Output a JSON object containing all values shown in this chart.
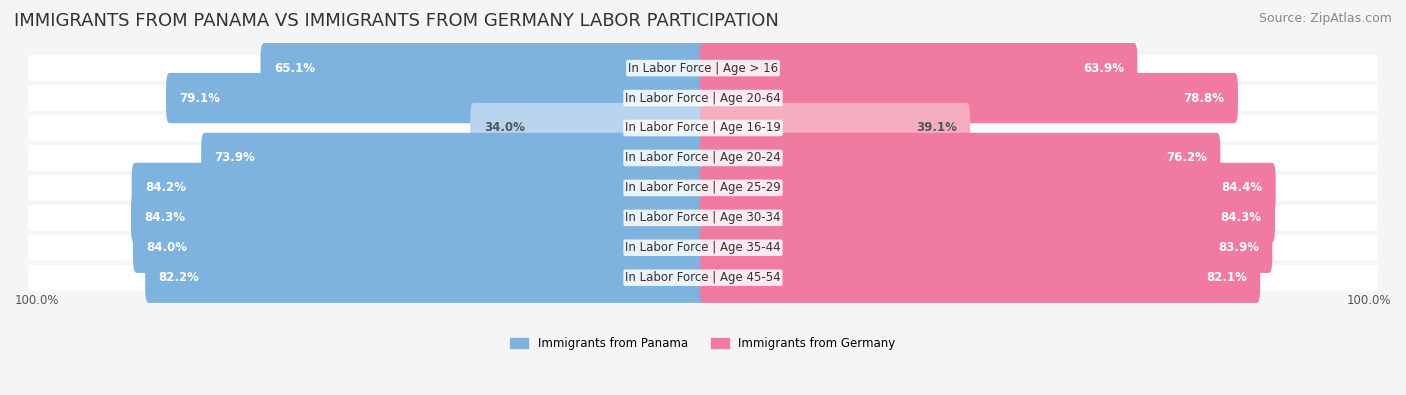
{
  "title": "IMMIGRANTS FROM PANAMA VS IMMIGRANTS FROM GERMANY LABOR PARTICIPATION",
  "source": "Source: ZipAtlas.com",
  "categories": [
    "In Labor Force | Age > 16",
    "In Labor Force | Age 20-64",
    "In Labor Force | Age 16-19",
    "In Labor Force | Age 20-24",
    "In Labor Force | Age 25-29",
    "In Labor Force | Age 30-34",
    "In Labor Force | Age 35-44",
    "In Labor Force | Age 45-54"
  ],
  "panama_values": [
    65.1,
    79.1,
    34.0,
    73.9,
    84.2,
    84.3,
    84.0,
    82.2
  ],
  "germany_values": [
    63.9,
    78.8,
    39.1,
    76.2,
    84.4,
    84.3,
    83.9,
    82.1
  ],
  "panama_color_full": "#7eb3e0",
  "germany_color_full": "#f07aa0",
  "panama_color_light": "#b8d4ee",
  "germany_color_light": "#f5adc0",
  "background_color": "#f5f5f5",
  "bar_background": "#e8e8e8",
  "row_bg_color": "#efefef",
  "max_value": 100.0,
  "bar_height": 0.68,
  "legend_panama": "Immigrants from Panama",
  "legend_germany": "Immigrants from Germany",
  "title_fontsize": 13,
  "label_fontsize": 8.5,
  "value_fontsize": 8.5,
  "source_fontsize": 9
}
